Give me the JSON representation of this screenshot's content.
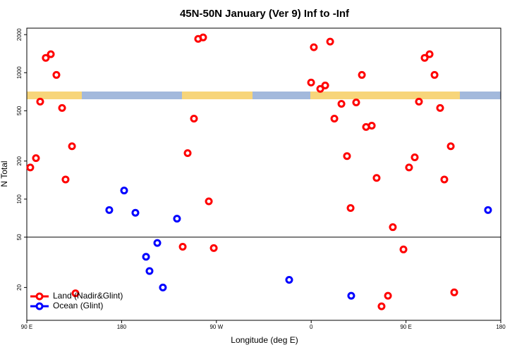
{
  "chart_data": {
    "type": "scatter",
    "title": "45N-50N January (Ver 9)   Inf to -Inf",
    "x_label": "Longitude (deg E)",
    "y_label": "N Total",
    "xlim": [
      90,
      540
    ],
    "xticks": [
      {
        "value": 90,
        "label": "90 E"
      },
      180,
      {
        "value": 270,
        "label": "90 W"
      },
      {
        "value": 360,
        "label": "0"
      },
      {
        "value": 450,
        "label": "90 E"
      },
      {
        "value": 540,
        "label": "180"
      }
    ],
    "ylim": [
      11,
      2250
    ],
    "log_y": true,
    "yticks": [
      20,
      50,
      100,
      200,
      500,
      1000,
      2000
    ],
    "hline": 50,
    "legend": "bottom-left",
    "series": [
      {
        "name": "Land (Nadir&Glint)",
        "color": "#ff0000",
        "x": [
          93.3,
          98.7,
          102.7,
          108,
          112.8,
          118.1,
          123.5,
          126.8,
          132.9,
          136.2,
          238,
          242.7,
          248.7,
          252.7,
          257.4,
          262.8,
          267.5,
          359.9,
          362.5,
          368.6,
          373.3,
          378,
          382,
          388.7,
          394,
          397.4,
          402.7,
          408.1,
          412.1,
          417.5,
          422.1,
          426.8,
          432.9,
          437.5,
          447.6,
          452.9,
          458.3,
          462.3,
          467.7,
          472.4,
          477.1,
          482.4,
          486.4,
          492.5,
          495.8
        ],
        "values": [
          178,
          211,
          590,
          1310,
          1400,
          960,
          526,
          143,
          262,
          18,
          42,
          231,
          433,
          1850,
          1900,
          96,
          41,
          836,
          1590,
          745,
          793,
          1760,
          433,
          567,
          219,
          85,
          582,
          960,
          372,
          381,
          147,
          14.2,
          17.2,
          60,
          40,
          178,
          214,
          590,
          1310,
          1400,
          960,
          526,
          143,
          262,
          18.3
        ]
      },
      {
        "name": "Ocean (Glint)",
        "color": "#0000ff",
        "x": [
          168.3,
          182.4,
          193.1,
          203.2,
          206.5,
          213.9,
          219.2,
          232.6,
          339.1,
          398,
          527.9
        ],
        "values": [
          82,
          117,
          78,
          35,
          27,
          45,
          20,
          70,
          23,
          17.2,
          82
        ]
      }
    ]
  }
}
